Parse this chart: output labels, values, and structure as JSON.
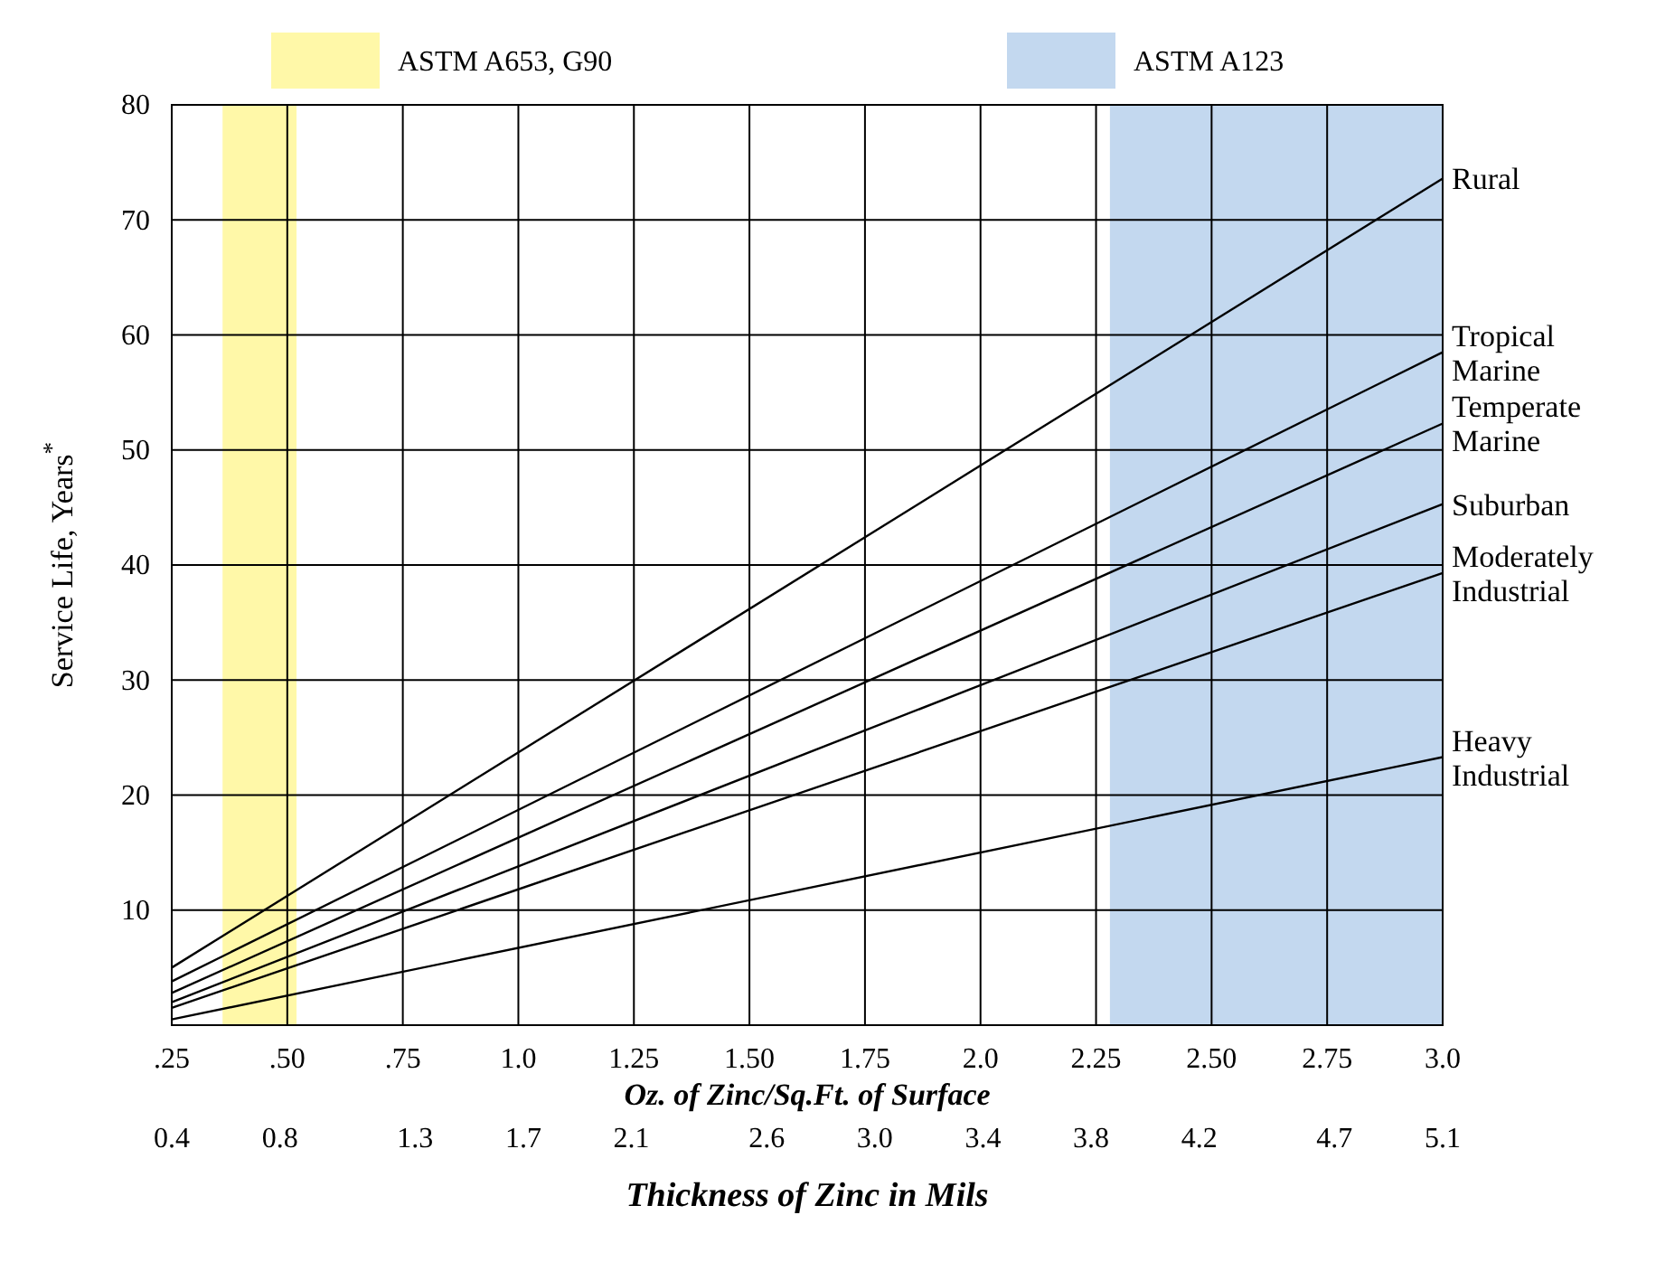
{
  "chart_data": {
    "type": "line",
    "xlabel": "Oz. of Zinc/Sq.Ft. of Surface",
    "x2label": "Thickness of Zinc in Mils",
    "ylabel": "Service Life, Years$^{*}$",
    "x": [
      0.25,
      3.0
    ],
    "series": [
      {
        "name": "Rural",
        "color": "#000000",
        "values": [
          5.0,
          73.6
        ]
      },
      {
        "name": "Tropical Marine",
        "color": "#000000",
        "values": [
          3.8,
          58.5
        ]
      },
      {
        "name": "Temperate Marine",
        "color": "#000000",
        "values": [
          2.8,
          52.3
        ]
      },
      {
        "name": "Suburban",
        "color": "#000000",
        "values": [
          2.0,
          45.3
        ]
      },
      {
        "name": "Moderately Industrial",
        "color": "#000000",
        "values": [
          1.5,
          39.3
        ]
      },
      {
        "name": "Heavy Industrial",
        "color": "#000000",
        "values": [
          0.5,
          23.3
        ]
      }
    ],
    "xlim": [
      0.25,
      3.0
    ],
    "xticks": [
      {
        "value": 0.25,
        "label": ".25"
      },
      {
        "value": 0.5,
        "label": ".50"
      },
      {
        "value": 0.75,
        "label": ".75"
      },
      {
        "value": 1.0,
        "label": "1.0"
      },
      {
        "value": 1.25,
        "label": "1.25"
      },
      {
        "value": 1.5,
        "label": "1.50"
      },
      {
        "value": 1.75,
        "label": "1.75"
      },
      {
        "value": 2.0,
        "label": "2.0"
      },
      {
        "value": 2.25,
        "label": "2.25"
      },
      {
        "value": 2.5,
        "label": "2.50"
      },
      {
        "value": 2.75,
        "label": "2.75"
      },
      {
        "value": 3.0,
        "label": "3.0"
      }
    ],
    "x2lim": [
      0.4,
      5.1
    ],
    "x2ticks": [
      0.4,
      0.8,
      1.3,
      1.7,
      2.1,
      2.6,
      {
        "value": 3.0,
        "label": "3.0"
      },
      3.4,
      3.8,
      4.2,
      4.7,
      5.1
    ],
    "ylim": [
      0,
      80
    ],
    "yticks": [
      10,
      20,
      30,
      40,
      50,
      60,
      70,
      80
    ],
    "grid": true,
    "legend": "top",
    "marker": "none",
    "line_style": "solid",
    "bands": [
      {
        "axis": "x",
        "from": 0.36,
        "to": 0.52,
        "label": "ASTM A653, G90",
        "color": "#fff8a8"
      },
      {
        "axis": "x",
        "from": 2.28,
        "to": 3.0,
        "label": "ASTM A123",
        "color": "#c3d8ef"
      }
    ]
  }
}
